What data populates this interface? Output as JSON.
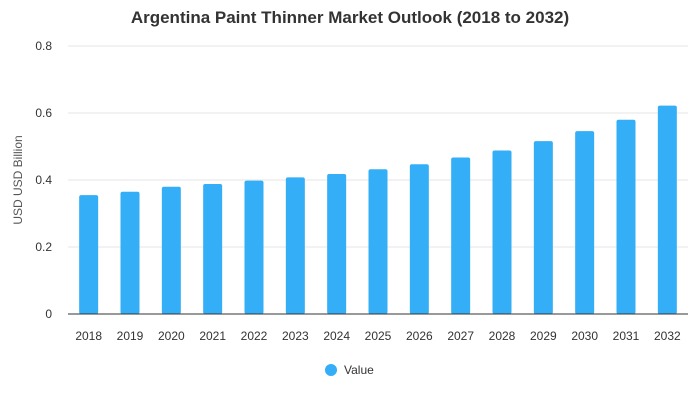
{
  "chart_data": {
    "type": "bar",
    "title": "Argentina Paint Thinner Market Outlook (2018 to 2032)",
    "xlabel": "",
    "ylabel": "USD USD Billion",
    "categories": [
      "2018",
      "2019",
      "2020",
      "2021",
      "2022",
      "2023",
      "2024",
      "2025",
      "2026",
      "2027",
      "2028",
      "2029",
      "2030",
      "2031",
      "2032"
    ],
    "series": [
      {
        "name": "Value",
        "color": "#33aef7",
        "values": [
          0.355,
          0.365,
          0.38,
          0.388,
          0.398,
          0.408,
          0.418,
          0.432,
          0.447,
          0.467,
          0.488,
          0.516,
          0.546,
          0.58,
          0.622
        ]
      }
    ],
    "ylim": [
      0,
      0.8
    ],
    "yticks": [
      0,
      0.2,
      0.4,
      0.6,
      0.8
    ],
    "ytick_labels": [
      "0",
      "0.2",
      "0.4",
      "0.6",
      "0.8"
    ],
    "grid": true,
    "legend_position": "bottom-center"
  }
}
